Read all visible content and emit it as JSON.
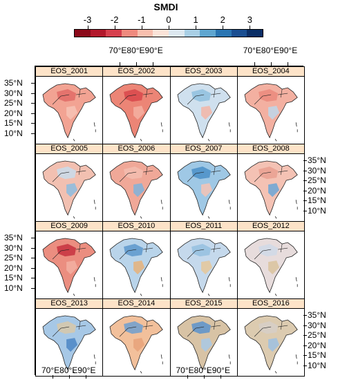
{
  "legend": {
    "title": "SMDI",
    "ticks": [
      "-3",
      "-2",
      "-1",
      "0",
      "1",
      "2",
      "3"
    ],
    "colors": [
      "#8b0a1a",
      "#b2182b",
      "#d6404e",
      "#ef8a7e",
      "#f8bfae",
      "#fbe3d8",
      "#dde8f0",
      "#a9cfe5",
      "#5fa6d0",
      "#2a75b2",
      "#1a4e91",
      "#0b2e66"
    ]
  },
  "axes": {
    "lat_labels": [
      "35°N",
      "30°N",
      "25°N",
      "20°N",
      "15°N",
      "10°N"
    ],
    "lon_top": "70°E80°E90°E",
    "lon_bottom": "70°E80°E90°E"
  },
  "panels": [
    {
      "label": "EOS_2001",
      "land": "#f2a393",
      "north": "#e26b66",
      "accent": "#f7c3b5"
    },
    {
      "label": "EOS_2002",
      "land": "#ec8576",
      "north": "#d9474b",
      "accent": "#f5b0a2"
    },
    {
      "label": "EOS_2003",
      "land": "#cfe0ee",
      "north": "#8fbfde",
      "accent": "#f3b5a6"
    },
    {
      "label": "EOS_2004",
      "land": "#f3b0a1",
      "north": "#ea8a7c",
      "accent": "#bdd7ea"
    },
    {
      "label": "EOS_2005",
      "land": "#f2c0b1",
      "north": "#c9dcec",
      "accent": "#8cbce0"
    },
    {
      "label": "EOS_2006",
      "land": "#f0a898",
      "north": "#f3bdaf",
      "accent": "#7fb3db"
    },
    {
      "label": "EOS_2007",
      "land": "#9fc8e5",
      "north": "#4a8fc8",
      "accent": "#f6c3b5"
    },
    {
      "label": "EOS_2008",
      "land": "#f4c2b4",
      "north": "#e9a090",
      "accent": "#6aa6d6"
    },
    {
      "label": "EOS_2009",
      "land": "#eb8e80",
      "north": "#c7333f",
      "accent": "#f3b0a2"
    },
    {
      "label": "EOS_2010",
      "land": "#b9d4ea",
      "north": "#5d98cc",
      "accent": "#e6b27a"
    },
    {
      "label": "EOS_2011",
      "land": "#c5d9ec",
      "north": "#94c0e0",
      "accent": "#e5c79a"
    },
    {
      "label": "EOS_2012",
      "land": "#e7dcdc",
      "north": "#cfd9e8",
      "accent": "#d9c39e"
    },
    {
      "label": "EOS_2013",
      "land": "#a7c8e6",
      "north": "#d8c8a8",
      "accent": "#4c86c4"
    },
    {
      "label": "EOS_2014",
      "land": "#f2c09b",
      "north": "#6e9fd0",
      "accent": "#e8a27a"
    },
    {
      "label": "EOS_2015",
      "land": "#d8c3a5",
      "north": "#5a93cc",
      "accent": "#a9c9e5"
    },
    {
      "label": "EOS_2016",
      "land": "#dccbb0",
      "north": "#d6cfc8",
      "accent": "#9ec1e2"
    }
  ]
}
